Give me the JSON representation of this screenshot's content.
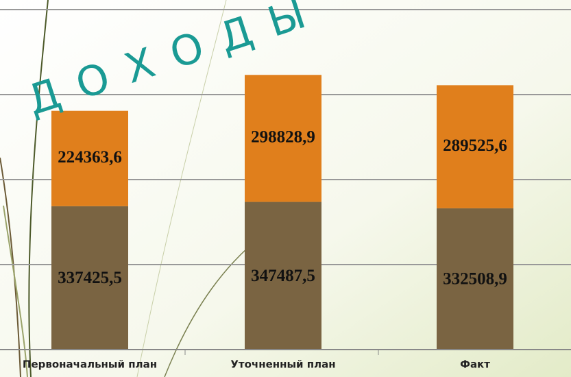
{
  "chart_data": {
    "type": "stacked_bar",
    "title": "ДОХОДЫ",
    "categories": [
      "Первоначальный план",
      "Уточненный план",
      "Факт"
    ],
    "series": [
      {
        "color": "#7a6442",
        "values": [
          337425.5,
          347487.5,
          332508.9
        ],
        "value_labels": [
          "337425,5",
          "347487,5",
          "332508,9"
        ]
      },
      {
        "color": "#e07f1c",
        "values": [
          224363.6,
          298828.9,
          289525.6
        ],
        "value_labels": [
          "224363,6",
          "298828,9",
          "289525,6"
        ]
      }
    ],
    "ylim": [
      0,
      800000
    ],
    "yticks": [
      0,
      200000,
      400000,
      600000,
      800000
    ],
    "grid": true
  }
}
